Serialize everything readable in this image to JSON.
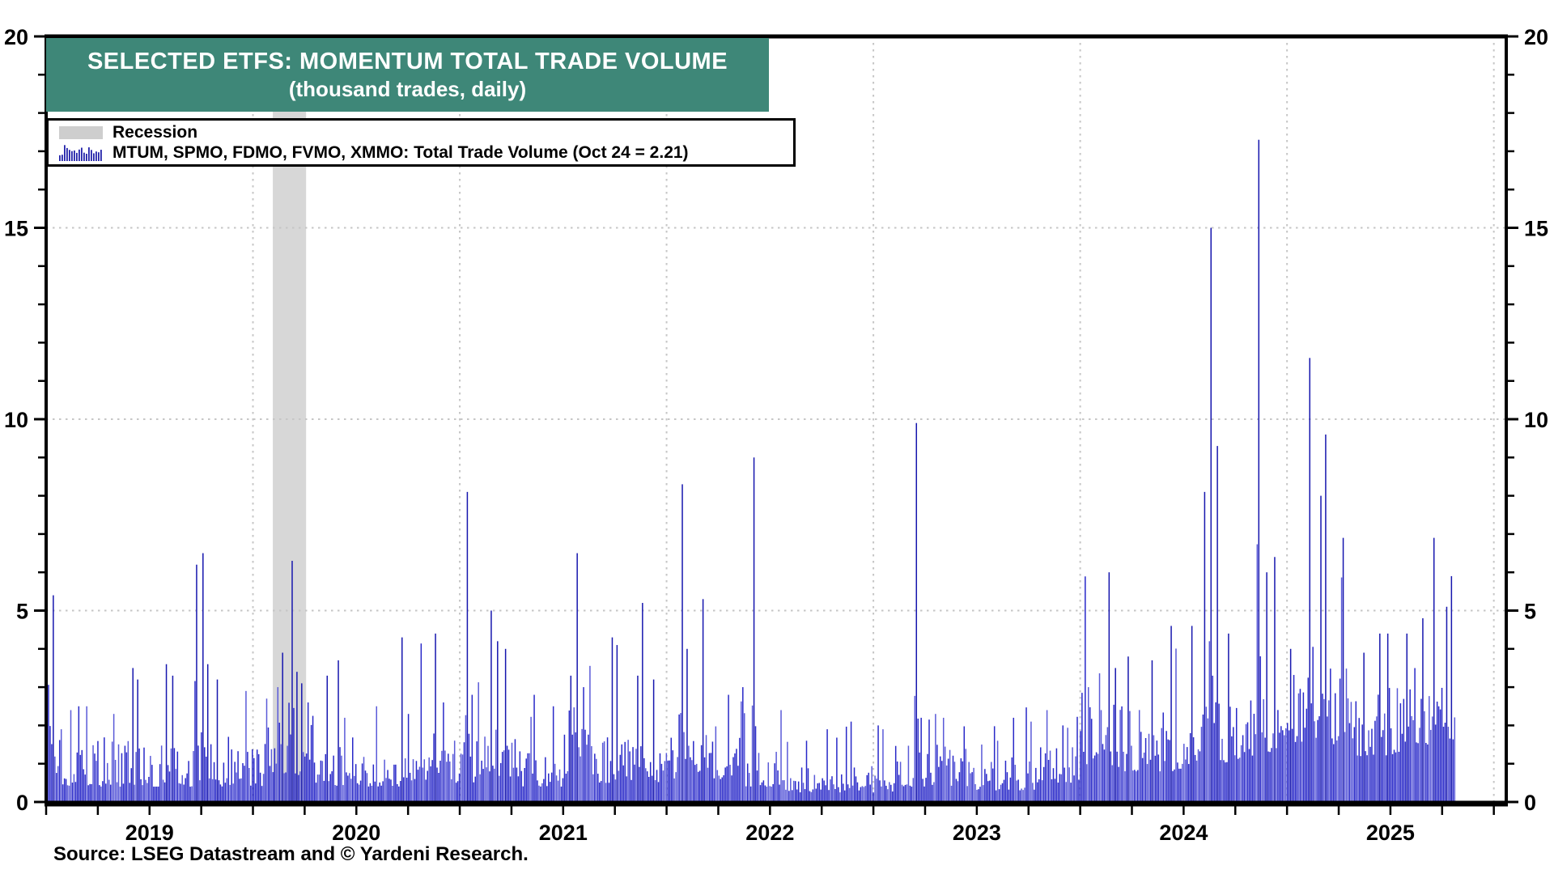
{
  "title": {
    "line1": "SELECTED ETFS: MOMENTUM TOTAL TRADE VOLUME",
    "line2": "(thousand trades, daily)"
  },
  "legend": {
    "recession_label": "Recession",
    "series_label": "MTUM, SPMO, FDMO, FVMO, XMMO: Total Trade Volume (Oct 24 = 2.21)"
  },
  "source": "Source: LSEG Datastream and © Yardeni Research.",
  "colors": {
    "title_bg": "#3E8778",
    "recession_band": "#d7d7d7",
    "swatch": "#cecece",
    "bar_main": "#2828c8",
    "bar_light": "#5a5ad8",
    "bar_spike": "#1616ae",
    "grid": "#c6c6c6",
    "axis": "#000000"
  },
  "chart_data": {
    "type": "bar",
    "title": "SELECTED ETFS: MOMENTUM TOTAL TRADE VOLUME (thousand trades, daily)",
    "series_name": "MTUM, SPMO, FDMO, FVMO, XMMO: Total Trade Volume",
    "last_point": {
      "label": "Oct 24",
      "value": 2.21
    },
    "y_axis": {
      "min": 0,
      "max": 20,
      "major_tick": 5,
      "minor_tick": 1,
      "tick_labels": [
        "0",
        "5",
        "10",
        "15",
        "20"
      ],
      "grid_values": [
        5,
        10,
        15
      ],
      "labels_both_sides": true
    },
    "x_axis": {
      "start": 2019.0,
      "end": 2026.06,
      "tick_interval_years": 0.25,
      "year_labels": [
        "2019",
        "2020",
        "2021",
        "2022",
        "2023",
        "2024",
        "2025"
      ],
      "year_label_centers": [
        2019.5,
        2020.5,
        2021.5,
        2022.5,
        2023.5,
        2024.5,
        2025.5
      ],
      "grid_years": [
        2020,
        2021,
        2022,
        2023,
        2024,
        2025,
        2026
      ]
    },
    "recession_bands": [
      [
        2020.096,
        2020.257
      ]
    ],
    "data_end": 2025.815,
    "bar_step_years": 0.0077,
    "seed": 20251024,
    "spikes": [
      [
        2019.035,
        5.4
      ],
      [
        2019.07,
        1.9
      ],
      [
        2019.12,
        2.4
      ],
      [
        2019.16,
        2.5
      ],
      [
        2019.2,
        2.5
      ],
      [
        2019.33,
        2.3
      ],
      [
        2019.42,
        3.5
      ],
      [
        2019.445,
        3.2
      ],
      [
        2019.58,
        3.6
      ],
      [
        2019.61,
        3.3
      ],
      [
        2019.73,
        6.2
      ],
      [
        2019.755,
        6.5
      ],
      [
        2019.78,
        3.6
      ],
      [
        2019.83,
        3.2
      ],
      [
        2019.97,
        2.9
      ],
      [
        2020.07,
        2.7
      ],
      [
        2020.12,
        3.0
      ],
      [
        2020.145,
        3.9
      ],
      [
        2020.19,
        6.3
      ],
      [
        2020.21,
        3.4
      ],
      [
        2020.235,
        3.1
      ],
      [
        2020.27,
        2.6
      ],
      [
        2020.36,
        3.3
      ],
      [
        2020.41,
        3.7
      ],
      [
        2020.44,
        2.2
      ],
      [
        2020.6,
        2.5
      ],
      [
        2020.72,
        4.3
      ],
      [
        2020.75,
        2.3
      ],
      [
        2020.88,
        4.4
      ],
      [
        2020.92,
        2.6
      ],
      [
        2021.035,
        8.1
      ],
      [
        2021.06,
        2.8
      ],
      [
        2021.15,
        5.0
      ],
      [
        2021.18,
        4.2
      ],
      [
        2021.22,
        4.0
      ],
      [
        2021.36,
        2.8
      ],
      [
        2021.45,
        2.5
      ],
      [
        2021.54,
        3.3
      ],
      [
        2021.565,
        6.5
      ],
      [
        2021.6,
        3.0
      ],
      [
        2021.74,
        4.3
      ],
      [
        2021.76,
        4.1
      ],
      [
        2021.86,
        3.3
      ],
      [
        2021.885,
        5.2
      ],
      [
        2021.94,
        3.2
      ],
      [
        2022.075,
        8.3
      ],
      [
        2022.1,
        4.0
      ],
      [
        2022.18,
        5.3
      ],
      [
        2022.3,
        2.8
      ],
      [
        2022.37,
        3.0
      ],
      [
        2022.42,
        9.0
      ],
      [
        2022.55,
        2.4
      ],
      [
        2022.68,
        1.6
      ],
      [
        2022.78,
        1.9
      ],
      [
        2022.89,
        2.1
      ],
      [
        2023.02,
        2.0
      ],
      [
        2023.05,
        1.9
      ],
      [
        2023.21,
        9.9
      ],
      [
        2023.23,
        2.2
      ],
      [
        2023.3,
        2.3
      ],
      [
        2023.34,
        2.2
      ],
      [
        2023.52,
        1.5
      ],
      [
        2023.6,
        1.6
      ],
      [
        2023.68,
        2.2
      ],
      [
        2023.76,
        2.1
      ],
      [
        2023.84,
        2.4
      ],
      [
        2023.92,
        2.0
      ],
      [
        2024.04,
        3.0
      ],
      [
        2024.14,
        6.0
      ],
      [
        2024.17,
        3.5
      ],
      [
        2024.23,
        3.8
      ],
      [
        2024.35,
        3.7
      ],
      [
        2024.44,
        4.6
      ],
      [
        2024.54,
        4.6
      ],
      [
        2024.6,
        8.1
      ],
      [
        2024.63,
        15.0
      ],
      [
        2024.665,
        9.3
      ],
      [
        2024.72,
        4.4
      ],
      [
        2024.86,
        17.3
      ],
      [
        2024.9,
        6.0
      ],
      [
        2024.94,
        6.4
      ],
      [
        2025.02,
        4.0
      ],
      [
        2025.11,
        11.6
      ],
      [
        2025.165,
        8.0
      ],
      [
        2025.19,
        9.6
      ],
      [
        2025.27,
        6.9
      ],
      [
        2025.37,
        3.9
      ],
      [
        2025.45,
        4.4
      ],
      [
        2025.49,
        4.4
      ],
      [
        2025.58,
        4.4
      ],
      [
        2025.66,
        4.8
      ],
      [
        2025.71,
        6.9
      ],
      [
        2025.77,
        5.1
      ],
      [
        2025.795,
        5.9
      ],
      [
        2025.813,
        2.21
      ]
    ],
    "baseline_segments": [
      [
        2019.0,
        2019.6,
        0.4,
        1.7
      ],
      [
        2019.6,
        2020.05,
        0.4,
        1.5
      ],
      [
        2020.05,
        2020.3,
        0.7,
        2.6
      ],
      [
        2020.3,
        2020.75,
        0.4,
        1.3
      ],
      [
        2020.75,
        2021.1,
        0.5,
        1.8
      ],
      [
        2021.1,
        2021.3,
        0.6,
        2.0
      ],
      [
        2021.3,
        2021.5,
        0.4,
        1.3
      ],
      [
        2021.5,
        2021.65,
        0.7,
        2.6
      ],
      [
        2021.65,
        2022.0,
        0.5,
        1.8
      ],
      [
        2022.0,
        2022.3,
        0.6,
        2.0
      ],
      [
        2022.3,
        2022.55,
        0.4,
        1.4
      ],
      [
        2022.55,
        2023.1,
        0.25,
        0.95
      ],
      [
        2023.1,
        2023.45,
        0.4,
        1.5
      ],
      [
        2023.45,
        2023.8,
        0.3,
        1.1
      ],
      [
        2023.8,
        2024.0,
        0.5,
        1.7
      ],
      [
        2024.0,
        2024.3,
        0.8,
        2.6
      ],
      [
        2024.3,
        2024.55,
        0.8,
        2.2
      ],
      [
        2024.55,
        2024.8,
        1.0,
        2.6
      ],
      [
        2024.8,
        2025.0,
        1.2,
        3.0
      ],
      [
        2025.0,
        2025.3,
        1.5,
        3.5
      ],
      [
        2025.3,
        2025.55,
        1.2,
        3.0
      ],
      [
        2025.55,
        2025.815,
        1.5,
        3.6
      ]
    ],
    "legend_position": "top-left",
    "grid": "dotted"
  }
}
